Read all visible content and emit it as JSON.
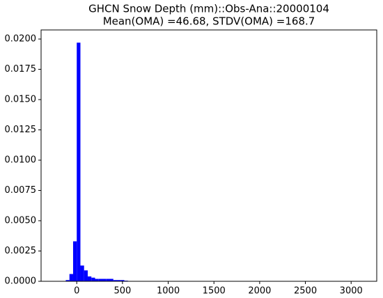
{
  "chart_data": {
    "type": "histogram",
    "title": "GHCN Snow Depth (mm)::Obs-Ana::20000104",
    "subtitle": "Mean(OMA) =46.68, STDV(OMA) =168.7",
    "bins": [
      -120,
      -80,
      -40,
      0,
      40,
      80,
      120,
      160,
      200,
      240,
      280,
      320,
      360,
      400,
      440,
      480,
      520,
      560
    ],
    "values": [
      0.0001,
      0.0006,
      0.0033,
      0.0197,
      0.0013,
      0.0009,
      0.0004,
      0.0003,
      0.0002,
      0.0002,
      0.0002,
      0.0002,
      0.0002,
      0.0001,
      0.0001,
      0.0001,
      5e-05
    ],
    "color": "#0000ff",
    "xlim": [
      -390,
      3280
    ],
    "xticks": [
      0,
      500,
      1000,
      1500,
      2000,
      2500,
      3000
    ],
    "ylim": [
      0,
      0.02075
    ],
    "yticks": [
      {
        "value": 0,
        "label": "0.0000"
      },
      {
        "value": 0.0025,
        "label": "0.0025"
      },
      {
        "value": 0.005,
        "label": "0.0050"
      },
      {
        "value": 0.0075,
        "label": "0.0075"
      },
      {
        "value": 0.01,
        "label": "0.0100"
      },
      {
        "value": 0.0125,
        "label": "0.0125"
      },
      {
        "value": 0.015,
        "label": "0.0150"
      },
      {
        "value": 0.0175,
        "label": "0.0175"
      },
      {
        "value": 0.02,
        "label": "0.0200"
      }
    ],
    "grid": false
  }
}
